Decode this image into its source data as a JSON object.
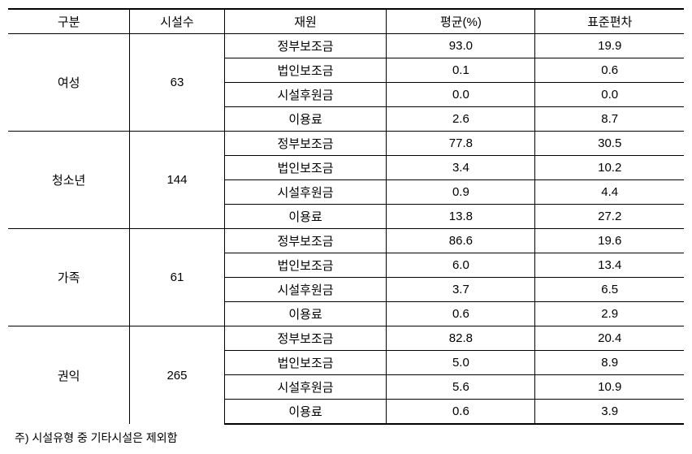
{
  "table": {
    "columns": [
      {
        "key": "category",
        "label": "구분",
        "class": "col-category"
      },
      {
        "key": "count",
        "label": "시설수",
        "class": "col-count"
      },
      {
        "key": "source",
        "label": "재원",
        "class": "col-source"
      },
      {
        "key": "avg",
        "label": "평균(%)",
        "class": "col-avg"
      },
      {
        "key": "std",
        "label": "표준편차",
        "class": "col-std"
      }
    ],
    "groups": [
      {
        "category": "여성",
        "count": "63",
        "rows": [
          {
            "source": "정부보조금",
            "avg": "93.0",
            "std": "19.9"
          },
          {
            "source": "법인보조금",
            "avg": "0.1",
            "std": "0.6"
          },
          {
            "source": "시설후원금",
            "avg": "0.0",
            "std": "0.0"
          },
          {
            "source": "이용료",
            "avg": "2.6",
            "std": "8.7"
          }
        ]
      },
      {
        "category": "청소년",
        "count": "144",
        "rows": [
          {
            "source": "정부보조금",
            "avg": "77.8",
            "std": "30.5"
          },
          {
            "source": "법인보조금",
            "avg": "3.4",
            "std": "10.2"
          },
          {
            "source": "시설후원금",
            "avg": "0.9",
            "std": "4.4"
          },
          {
            "source": "이용료",
            "avg": "13.8",
            "std": "27.2"
          }
        ]
      },
      {
        "category": "가족",
        "count": "61",
        "rows": [
          {
            "source": "정부보조금",
            "avg": "86.6",
            "std": "19.6"
          },
          {
            "source": "법인보조금",
            "avg": "6.0",
            "std": "13.4"
          },
          {
            "source": "시설후원금",
            "avg": "3.7",
            "std": "6.5"
          },
          {
            "source": "이용료",
            "avg": "0.6",
            "std": "2.9"
          }
        ]
      },
      {
        "category": "권익",
        "count": "265",
        "rows": [
          {
            "source": "정부보조금",
            "avg": "82.8",
            "std": "20.4"
          },
          {
            "source": "법인보조금",
            "avg": "5.0",
            "std": "8.9"
          },
          {
            "source": "시설후원금",
            "avg": "5.6",
            "std": "10.9"
          },
          {
            "source": "이용료",
            "avg": "0.6",
            "std": "3.9"
          }
        ]
      }
    ]
  },
  "footnote": "주) 시설유형 중 기타시설은 제외함"
}
